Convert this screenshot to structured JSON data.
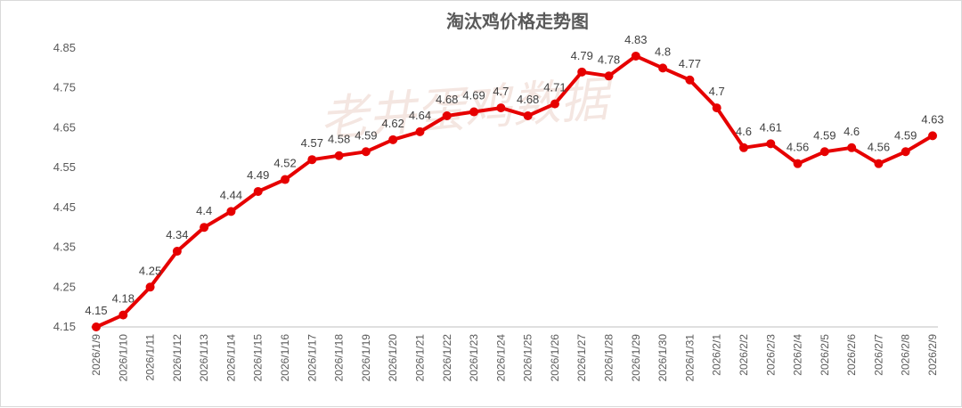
{
  "chart_data": {
    "type": "line",
    "title": "淘汰鸡价格走势图",
    "watermark": "老井蛋鸡数据",
    "xlabel": "",
    "ylabel": "",
    "ylim": [
      4.15,
      4.85
    ],
    "yticks": [
      "4.15",
      "4.25",
      "4.35",
      "4.45",
      "4.55",
      "4.65",
      "4.75",
      "4.85"
    ],
    "grid": false,
    "legend": "none",
    "line_color": "#e60000",
    "categories": [
      "2026/1/9",
      "2026/1/10",
      "2026/1/11",
      "2026/1/12",
      "2026/1/13",
      "2026/1/14",
      "2026/1/15",
      "2026/1/16",
      "2026/1/17",
      "2026/1/18",
      "2026/1/19",
      "2026/1/20",
      "2026/1/21",
      "2026/1/22",
      "2026/1/23",
      "2026/1/24",
      "2026/1/25",
      "2026/1/26",
      "2026/1/27",
      "2026/1/28",
      "2026/1/29",
      "2026/1/30",
      "2026/1/31",
      "2026/2/1",
      "2026/2/2",
      "2026/2/3",
      "2026/2/4",
      "2026/2/5",
      "2026/2/6",
      "2026/2/7",
      "2026/2/8",
      "2026/2/9"
    ],
    "values": [
      4.15,
      4.18,
      4.25,
      4.34,
      4.4,
      4.44,
      4.49,
      4.52,
      4.57,
      4.58,
      4.59,
      4.62,
      4.64,
      4.68,
      4.69,
      4.7,
      4.68,
      4.71,
      4.79,
      4.78,
      4.83,
      4.8,
      4.77,
      4.7,
      4.6,
      4.61,
      4.56,
      4.59,
      4.6,
      4.56,
      4.59,
      4.63
    ],
    "data_labels": [
      "4.15",
      "4.18",
      "4.25",
      "4.34",
      "4.4",
      "4.44",
      "4.49",
      "4.52",
      "4.57",
      "4.58",
      "4.59",
      "4.62",
      "4.64",
      "4.68",
      "4.69",
      "4.7",
      "4.68",
      "4.71",
      "4.79",
      "4.78",
      "4.83",
      "4.8",
      "4.77",
      "4.7",
      "4.6",
      "4.61",
      "4.56",
      "4.59",
      "4.6",
      "4.56",
      "4.59",
      "4.63"
    ]
  }
}
